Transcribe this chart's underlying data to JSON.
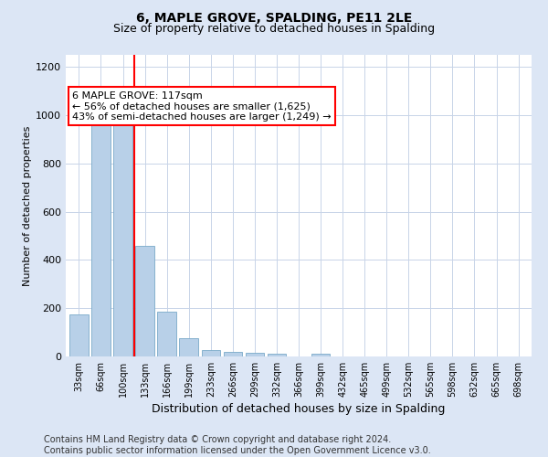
{
  "title": "6, MAPLE GROVE, SPALDING, PE11 2LE",
  "subtitle": "Size of property relative to detached houses in Spalding",
  "xlabel": "Distribution of detached houses by size in Spalding",
  "ylabel": "Number of detached properties",
  "categories": [
    "33sqm",
    "66sqm",
    "100sqm",
    "133sqm",
    "166sqm",
    "199sqm",
    "233sqm",
    "266sqm",
    "299sqm",
    "332sqm",
    "366sqm",
    "399sqm",
    "432sqm",
    "465sqm",
    "499sqm",
    "532sqm",
    "565sqm",
    "598sqm",
    "632sqm",
    "665sqm",
    "698sqm"
  ],
  "values": [
    175,
    960,
    985,
    460,
    185,
    75,
    25,
    20,
    15,
    10,
    0,
    10,
    0,
    0,
    0,
    0,
    0,
    0,
    0,
    0,
    0
  ],
  "bar_color": "#b8d0e8",
  "bar_edge_color": "#7aaac8",
  "vline_x": 2.5,
  "vline_color": "red",
  "annotation_text": "6 MAPLE GROVE: 117sqm\n← 56% of detached houses are smaller (1,625)\n43% of semi-detached houses are larger (1,249) →",
  "annotation_box_color": "white",
  "annotation_box_edge": "red",
  "ylim": [
    0,
    1250
  ],
  "yticks": [
    0,
    200,
    400,
    600,
    800,
    1000,
    1200
  ],
  "footer_line1": "Contains HM Land Registry data © Crown copyright and database right 2024.",
  "footer_line2": "Contains public sector information licensed under the Open Government Licence v3.0.",
  "background_color": "#dce6f5",
  "plot_bg_color": "#ffffff",
  "title_fontsize": 10,
  "subtitle_fontsize": 9,
  "footer_fontsize": 7,
  "annotation_fontsize": 8,
  "ylabel_fontsize": 8,
  "xlabel_fontsize": 9,
  "ytick_fontsize": 8,
  "xtick_fontsize": 7
}
